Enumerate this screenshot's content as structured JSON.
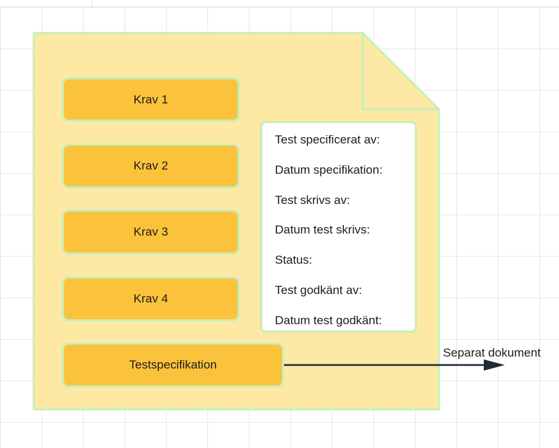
{
  "requirements": [
    {
      "label": "Krav 1"
    },
    {
      "label": "Krav 2"
    },
    {
      "label": "Krav 3"
    },
    {
      "label": "Krav 4"
    }
  ],
  "test_spec": {
    "label": "Testspecifikation"
  },
  "info_fields": [
    "Test specificerat av:",
    "Datum specifikation:",
    "Test skrivs av:",
    "Datum test skrivs:",
    "Status:",
    "Test godkänt av:",
    "Datum test godkänt:"
  ],
  "connector": {
    "label": "Separat dokument"
  },
  "colors": {
    "document_fill": "#fde9a3",
    "document_border": "#c8eeb9",
    "pill_fill": "#fbc33b",
    "arrow": "#1e2a3a"
  }
}
